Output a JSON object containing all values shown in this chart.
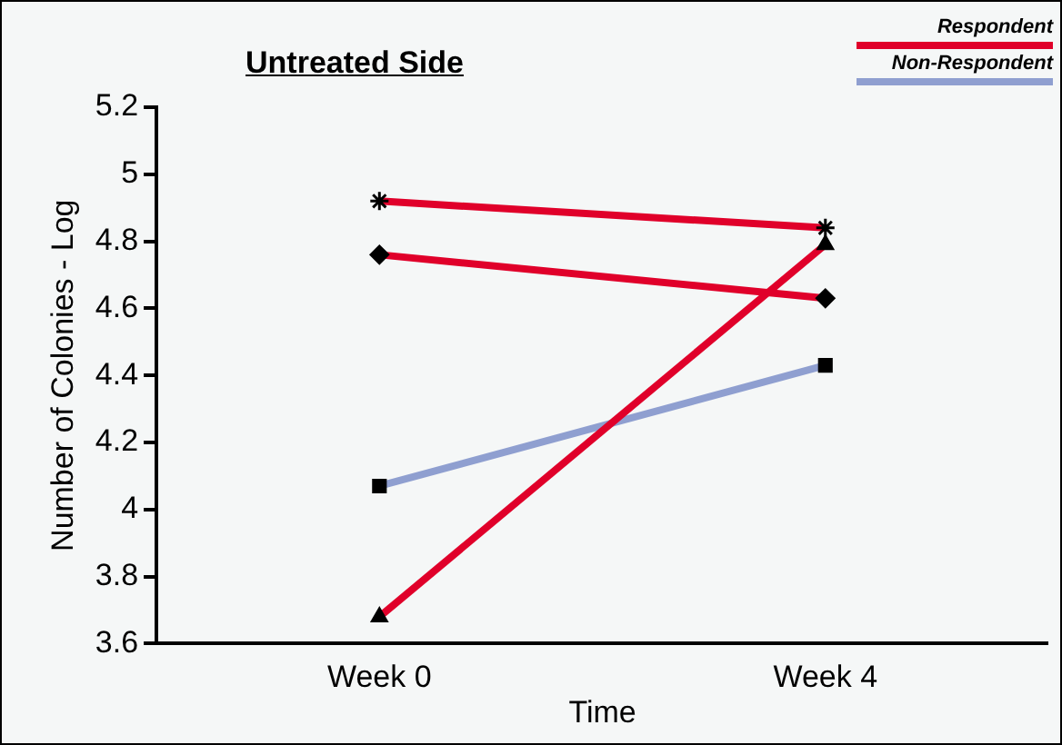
{
  "chart_data": {
    "type": "line",
    "title": "Untreated Side",
    "xlabel": "Time",
    "ylabel": "Number of Colonies - Log",
    "categories": [
      "Week 0",
      "Week 4"
    ],
    "series": [
      {
        "name": "Respondent",
        "color": "#e0002a",
        "marker": "cross",
        "values": [
          4.92,
          4.84
        ]
      },
      {
        "color": "#e0002a",
        "marker": "diamond",
        "values": [
          4.76,
          4.63
        ]
      },
      {
        "color": "#e0002a",
        "marker": "triangle",
        "values": [
          3.68,
          4.79
        ]
      },
      {
        "name": "Non-Respondent",
        "color": "#8f9fd0",
        "marker": "square",
        "values": [
          4.07,
          4.43
        ]
      }
    ],
    "ylim": [
      3.6,
      5.2
    ],
    "yticks": [
      3.6,
      3.8,
      4,
      4.2,
      4.4,
      4.6,
      4.8,
      5,
      5.2
    ],
    "grid": false,
    "legend": "top right",
    "line_style": "solid"
  }
}
